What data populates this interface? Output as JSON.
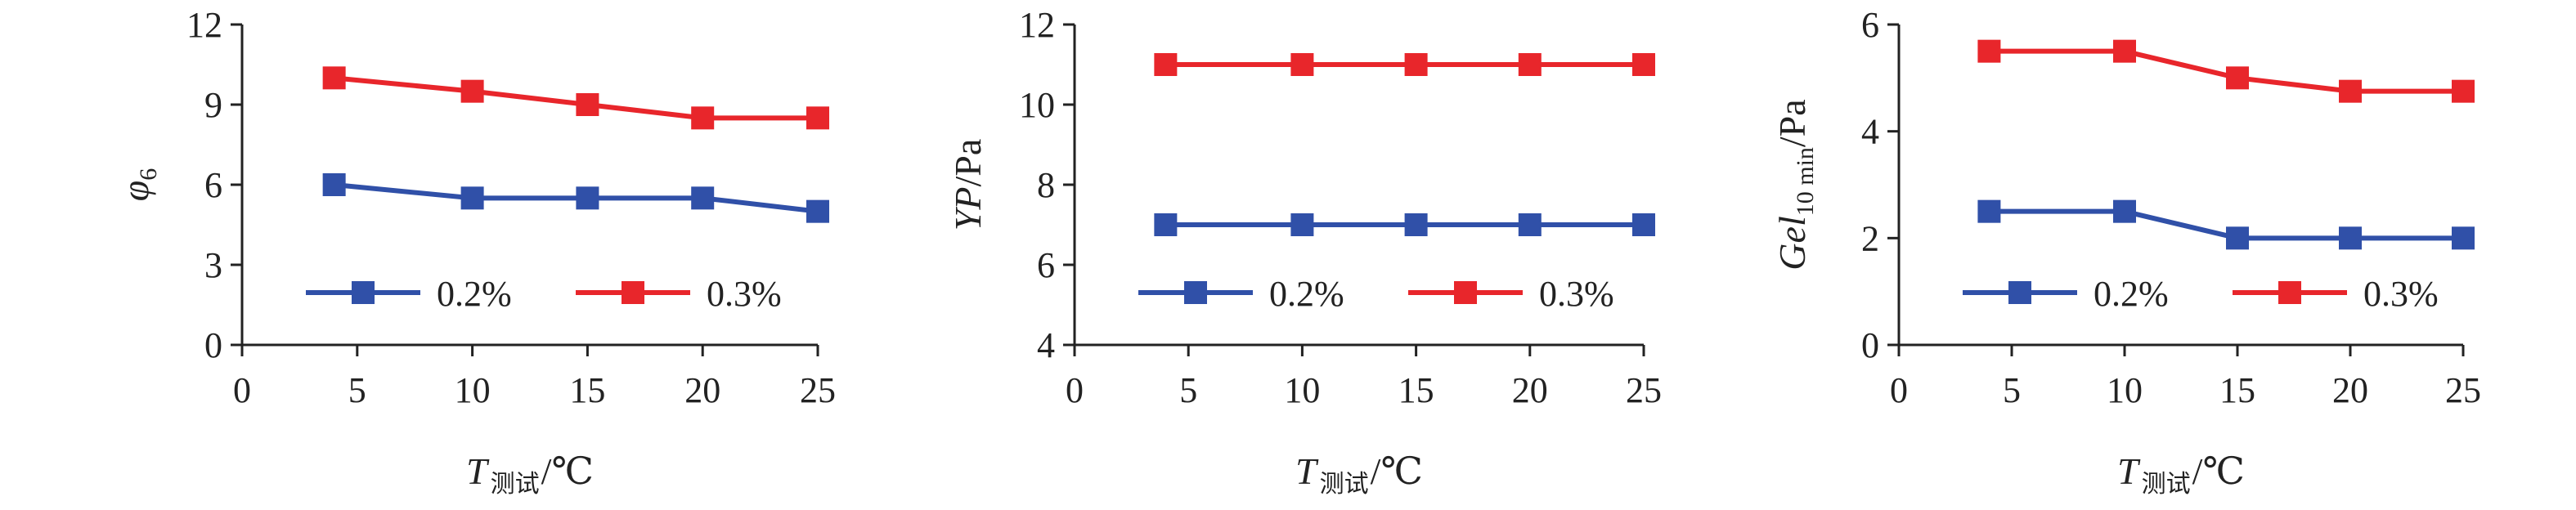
{
  "chart_data": [
    {
      "type": "line",
      "ylabel": "φ6",
      "xlabel": "T测试/℃",
      "xlim": [
        0,
        25
      ],
      "ylim": [
        0,
        12
      ],
      "xticks": [
        0,
        5,
        10,
        15,
        20,
        25
      ],
      "yticks": [
        0,
        3,
        6,
        9,
        12
      ],
      "x": [
        4,
        10,
        15,
        20,
        25
      ],
      "series": [
        {
          "name": "0.2%",
          "color": "#3050a8",
          "values": [
            6,
            5.5,
            5.5,
            5.5,
            5
          ]
        },
        {
          "name": "0.3%",
          "color": "#e8262b",
          "values": [
            10,
            9.5,
            9,
            8.5,
            8.5
          ]
        }
      ],
      "legend": "bottom-center",
      "grid": false
    },
    {
      "type": "line",
      "ylabel": "YP/Pa",
      "xlabel": "T测试/℃",
      "xlim": [
        0,
        25
      ],
      "ylim": [
        4,
        12
      ],
      "xticks": [
        0,
        5,
        10,
        15,
        20,
        25
      ],
      "yticks": [
        4,
        6,
        8,
        10,
        12
      ],
      "x": [
        4,
        10,
        15,
        20,
        25
      ],
      "series": [
        {
          "name": "0.2%",
          "color": "#3050a8",
          "values": [
            7,
            7,
            7,
            7,
            7
          ]
        },
        {
          "name": "0.3%",
          "color": "#e8262b",
          "values": [
            11,
            11,
            11,
            11,
            11
          ]
        }
      ],
      "legend": "bottom-center",
      "grid": false
    },
    {
      "type": "line",
      "ylabel": "Gel10 min/Pa",
      "xlabel": "T测试/℃",
      "xlim": [
        0,
        25
      ],
      "ylim": [
        0,
        6
      ],
      "xticks": [
        0,
        5,
        10,
        15,
        20,
        25
      ],
      "yticks": [
        0,
        2,
        4,
        6
      ],
      "x": [
        4,
        10,
        15,
        20,
        25
      ],
      "series": [
        {
          "name": "0.2%",
          "color": "#3050a8",
          "values": [
            2.5,
            2.5,
            2,
            2,
            2
          ]
        },
        {
          "name": "0.3%",
          "color": "#e8262b",
          "values": [
            5.5,
            5.5,
            5,
            4.75,
            4.75
          ]
        }
      ],
      "legend": "bottom-center",
      "grid": false
    }
  ]
}
